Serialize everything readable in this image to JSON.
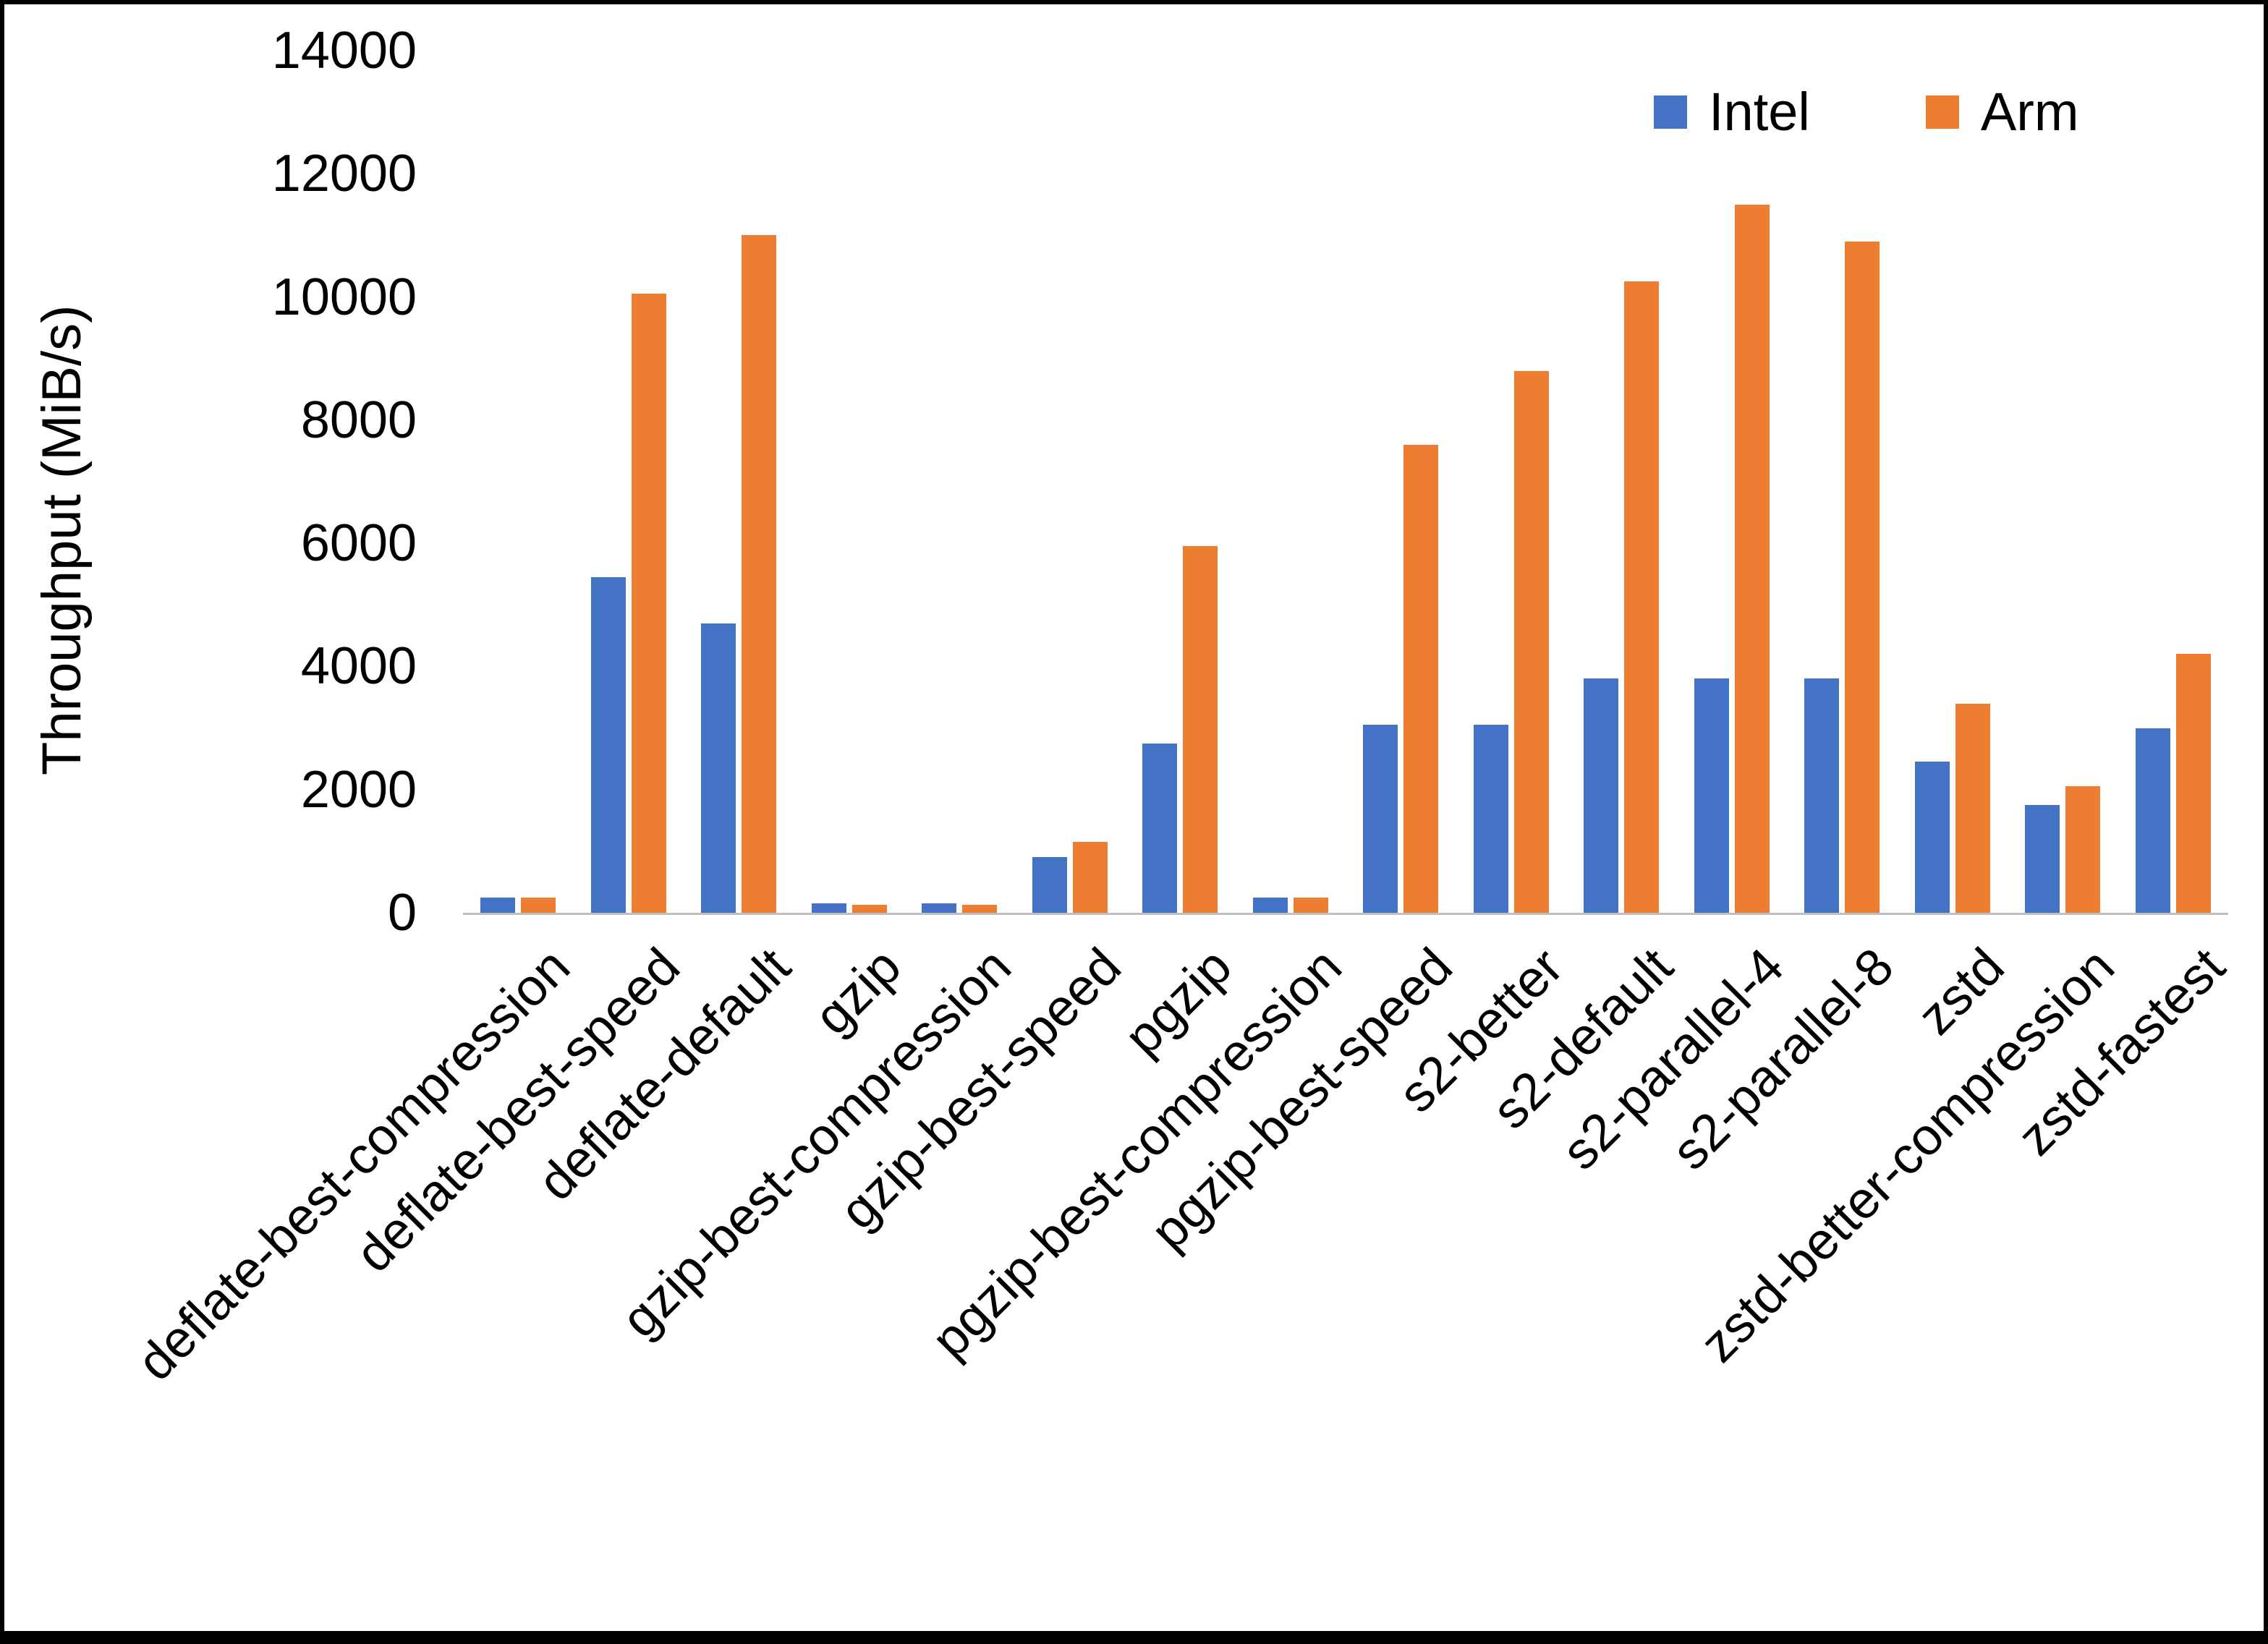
{
  "chart_data": {
    "type": "bar",
    "title": "",
    "xlabel": "",
    "ylabel": "Throughput (MiB/s)",
    "ylim": [
      0,
      14000
    ],
    "y_ticks": [
      0,
      2000,
      4000,
      6000,
      8000,
      10000,
      12000,
      14000
    ],
    "grid": false,
    "legend_position": "top-right",
    "categories": [
      "deflate-best-compression",
      "deflate-best-speed",
      "deflate-default",
      "gzip",
      "gzip-best-compression",
      "gzip-best-speed",
      "pgzip",
      "pgzip-best-compression",
      "pgzip-best-speed",
      "s2-better",
      "s2-default",
      "s2-parallel-4",
      "s2-parallel-8",
      "zstd",
      "zstd-better-compression",
      "zstd-fastest"
    ],
    "series": [
      {
        "name": "Intel",
        "color": "#4472C4",
        "values": [
          250,
          5450,
          4700,
          150,
          150,
          900,
          2750,
          250,
          3050,
          3050,
          3800,
          3800,
          3800,
          2450,
          1750,
          3000
        ]
      },
      {
        "name": "Arm",
        "color": "#ED7D31",
        "values": [
          250,
          10050,
          11000,
          130,
          130,
          1150,
          5950,
          250,
          7600,
          8800,
          10250,
          11500,
          10900,
          3400,
          2050,
          4200
        ]
      }
    ]
  },
  "frame": {
    "background": "#ffffff",
    "border_color": "#000000",
    "axis_line_color": "#bfbfbf"
  }
}
